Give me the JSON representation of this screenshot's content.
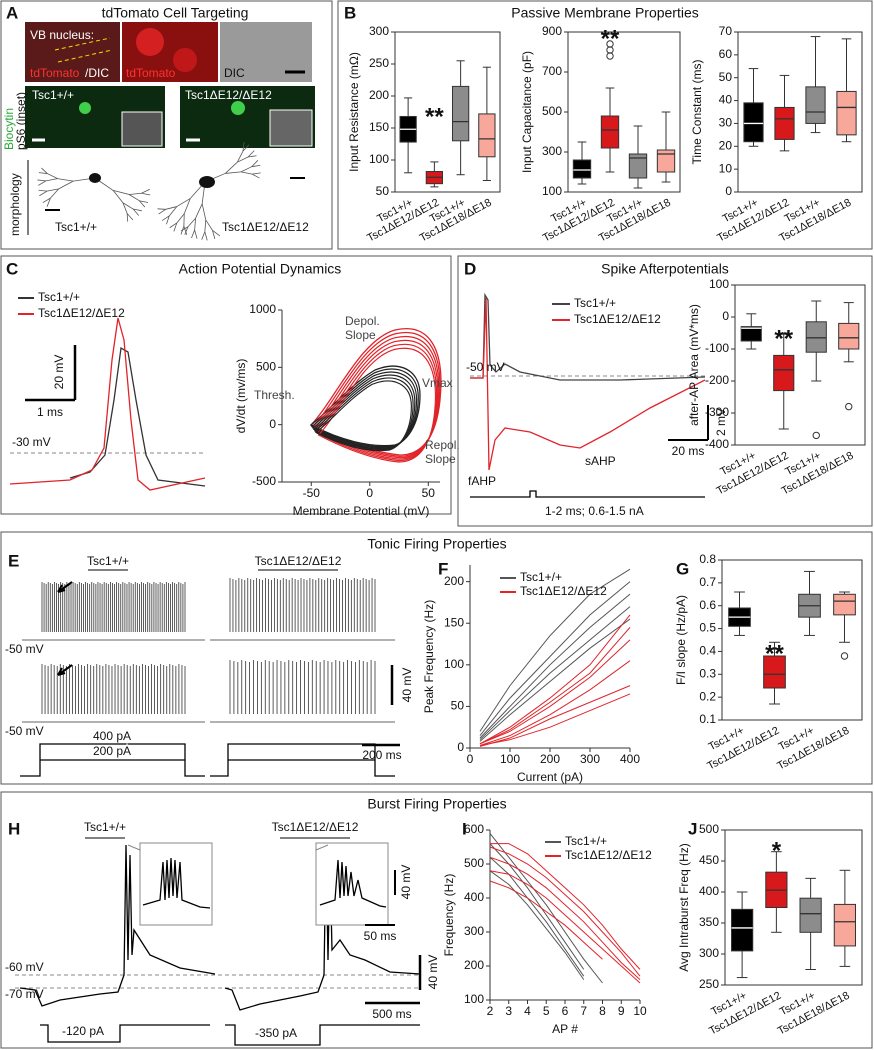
{
  "labels": {
    "a": "A",
    "a_title": "tdTomato Cell Targeting",
    "vb": "VB nucleus:",
    "tdt1": "tdTomato",
    "dic1": "/DIC",
    "tdt2": "tdTomato",
    "dic2": "DIC",
    "biocytin": "Biocytin",
    "ps6": "pS6 (inset)",
    "a_wt": "Tsc1+/+",
    "a_mut": "Tsc1ΔE12/ΔE12",
    "morph": "morphology",
    "a_wt2": "Tsc1+/+",
    "a_mut2": "Tsc1ΔE12/ΔE12",
    "b": "B",
    "b_title": "Passive Membrane Properties",
    "c": "C",
    "c_title": "Action Potential Dynamics",
    "c_wt": "Tsc1+/+",
    "c_mut": "Tsc1ΔE12/ΔE12",
    "c_mv": "20 mV",
    "c_ms": "1 ms",
    "c_base": "-30 mV",
    "d": "D",
    "d_title": "Spike Afterpotentials",
    "d_wt": "Tsc1+/+",
    "d_mut": "Tsc1ΔE12/ΔE12",
    "d_base": "-50 mV",
    "d_mv": "2 mV",
    "d_ms": "20 ms",
    "d_sahp": "sAHP",
    "d_fahp": "fAHP",
    "d_stim": "1-2 ms; 0.6-1.5 nA",
    "e_title": "Tonic Firing Properties",
    "e": "E",
    "e_wt": "Tsc1+/+",
    "e_mut": "Tsc1ΔE12/ΔE12",
    "e_base1": "-50 mV",
    "e_base2": "-50 mV",
    "e_mv": "40 mV",
    "e_ms": "200 ms",
    "e_400": "400 pA",
    "e_200": "200 pA",
    "f": "F",
    "g": "G",
    "h_title": "Burst Firing Properties",
    "h": "H",
    "h_wt": "Tsc1+/+",
    "h_mut": "Tsc1ΔE12/ΔE12",
    "h_in_mv": "40 mV",
    "h_in_ms": "50 ms",
    "h_60": "-60 mV",
    "h_70": "-70 mV",
    "h_mv": "40 mV",
    "h_ms": "500 ms",
    "h_120": "-120 pA",
    "h_350": "-350 pA",
    "i": "I",
    "j": "J"
  },
  "chart_data": [
    {
      "type": "box",
      "ylabel": "Input Resistance (mΩ)",
      "ylim": [
        50,
        300
      ],
      "yticks": [
        50,
        100,
        150,
        200,
        250,
        300
      ],
      "annotation": "**",
      "categories": [
        "Tsc1+/+",
        "Tsc1ΔE12/ΔE12",
        "Tsc1+/+",
        "Tsc1ΔE18/ΔE18"
      ],
      "colors": [
        "#000000",
        "#d7191c",
        "#8c8c8c",
        "#f7a89a"
      ],
      "boxes": [
        {
          "min": 80,
          "q1": 128,
          "median": 148,
          "q3": 168,
          "max": 197
        },
        {
          "min": 58,
          "q1": 63,
          "median": 73,
          "q3": 82,
          "max": 97
        },
        {
          "min": 77,
          "q1": 130,
          "median": 160,
          "q3": 215,
          "max": 255
        },
        {
          "min": 68,
          "q1": 105,
          "median": 133,
          "q3": 172,
          "max": 245
        }
      ],
      "outliers": [
        [],
        [],
        [],
        []
      ]
    },
    {
      "type": "box",
      "ylabel": "Input Capacitance (pF)",
      "ylim": [
        100,
        900
      ],
      "yticks": [
        100,
        300,
        500,
        700,
        900
      ],
      "annotation": "**",
      "categories": [
        "Tsc1+/+",
        "Tsc1ΔE12/ΔE12",
        "Tsc1+/+",
        "Tsc1ΔE18/ΔE18"
      ],
      "colors": [
        "#000000",
        "#d7191c",
        "#8c8c8c",
        "#f7a89a"
      ],
      "boxes": [
        {
          "min": 140,
          "q1": 170,
          "median": 210,
          "q3": 260,
          "max": 350
        },
        {
          "min": 200,
          "q1": 320,
          "median": 410,
          "q3": 480,
          "max": 620
        },
        {
          "min": 120,
          "q1": 170,
          "median": 270,
          "q3": 290,
          "max": 430
        },
        {
          "min": 150,
          "q1": 200,
          "median": 290,
          "q3": 310,
          "max": 500
        }
      ],
      "outliers": [
        [],
        [
          780,
          810,
          840
        ],
        [],
        []
      ]
    },
    {
      "type": "box",
      "ylabel": "Time Constant (ms)",
      "ylim": [
        0,
        70
      ],
      "yticks": [
        0,
        10,
        20,
        30,
        40,
        50,
        60,
        70
      ],
      "categories": [
        "Tsc1+/+",
        "Tsc1ΔE12/ΔE12",
        "Tsc1+/+",
        "Tsc1ΔE18/ΔE18"
      ],
      "colors": [
        "#000000",
        "#d7191c",
        "#8c8c8c",
        "#f7a89a"
      ],
      "boxes": [
        {
          "min": 20,
          "q1": 22,
          "median": 30,
          "q3": 39,
          "max": 54
        },
        {
          "min": 18,
          "q1": 23,
          "median": 32,
          "q3": 37,
          "max": 51
        },
        {
          "min": 26,
          "q1": 30,
          "median": 35,
          "q3": 46,
          "max": 68
        },
        {
          "min": 22,
          "q1": 25,
          "median": 37,
          "q3": 44,
          "max": 67
        }
      ],
      "outliers": [
        [],
        [],
        [],
        []
      ]
    },
    {
      "type": "phase",
      "xlabel": "Membrane Potential (mV)",
      "ylabel": "dV/dt (mv/ms)",
      "xlim": [
        -75,
        60
      ],
      "xticks": [
        -50,
        0,
        50
      ],
      "ylim": [
        -500,
        1000
      ],
      "yticks": [
        -500,
        0,
        500,
        1000
      ],
      "annotations": [
        "Depol.",
        "Slope",
        "Thresh.",
        "Vmax",
        "Repol.",
        "Slope"
      ]
    },
    {
      "type": "box",
      "ylabel": "after-AP Area (mV*ms)",
      "ylim": [
        -400,
        100
      ],
      "yticks": [
        -400,
        -300,
        -200,
        -100,
        0,
        100
      ],
      "annotation": "**",
      "categories": [
        "Tsc1+/+",
        "Tsc1ΔE12/ΔE12",
        "Tsc1+/+",
        "Tsc1ΔE18/ΔE18"
      ],
      "colors": [
        "#000000",
        "#d7191c",
        "#8c8c8c",
        "#f7a89a"
      ],
      "boxes": [
        {
          "min": -100,
          "q1": -75,
          "median": -35,
          "q3": -30,
          "max": 10
        },
        {
          "min": -350,
          "q1": -230,
          "median": -165,
          "q3": -120,
          "max": -50
        },
        {
          "min": -200,
          "q1": -110,
          "median": -65,
          "q3": -15,
          "max": 50
        },
        {
          "min": -140,
          "q1": -100,
          "median": -65,
          "q3": -20,
          "max": 45
        }
      ],
      "outliers": [
        [],
        [],
        [
          -370
        ],
        [
          -280
        ]
      ]
    },
    {
      "type": "lines",
      "xlabel": "Current (pA)",
      "ylabel": "Peak Frequency (Hz)",
      "xlim": [
        0,
        400
      ],
      "xticks": [
        0,
        100,
        200,
        300,
        400
      ],
      "ylim": [
        0,
        220
      ],
      "yticks": [
        0,
        50,
        100,
        150,
        200
      ],
      "x": [
        25,
        100,
        200,
        300,
        400
      ],
      "series": [
        {
          "name": "Tsc1+/+",
          "color": "#555555",
          "lines": [
            [
              20,
              75,
              135,
              185,
              215
            ],
            [
              15,
              60,
              110,
              160,
              200
            ],
            [
              12,
              50,
              100,
              145,
              185
            ],
            [
              10,
              45,
              90,
              130,
              170
            ],
            [
              8,
              40,
              80,
              120,
              155
            ]
          ]
        },
        {
          "name": "Tsc1ΔE12/ΔE12",
          "color": "#e0242a",
          "lines": [
            [
              5,
              25,
              60,
              100,
              160
            ],
            [
              5,
              20,
              50,
              85,
              130
            ],
            [
              3,
              15,
              40,
              70,
              105
            ],
            [
              5,
              22,
              55,
              90,
              145
            ],
            [
              2,
              12,
              35,
              55,
              75
            ],
            [
              3,
              10,
              25,
              45,
              65
            ]
          ]
        }
      ]
    },
    {
      "type": "box",
      "ylabel": "F/I slope (Hz/pA)",
      "ylim": [
        0.1,
        0.8
      ],
      "yticks": [
        0.1,
        0.2,
        0.3,
        0.4,
        0.5,
        0.6,
        0.7,
        0.8
      ],
      "annotation": "**",
      "categories": [
        "Tsc1+/+",
        "Tsc1ΔE12/ΔE12",
        "Tsc1+/+",
        "Tsc1ΔE18/ΔE18"
      ],
      "colors": [
        "#000000",
        "#d7191c",
        "#8c8c8c",
        "#f7a89a"
      ],
      "boxes": [
        {
          "min": 0.47,
          "q1": 0.51,
          "median": 0.55,
          "q3": 0.59,
          "max": 0.66
        },
        {
          "min": 0.17,
          "q1": 0.24,
          "median": 0.3,
          "q3": 0.38,
          "max": 0.44
        },
        {
          "min": 0.47,
          "q1": 0.55,
          "median": 0.6,
          "q3": 0.65,
          "max": 0.75
        },
        {
          "min": 0.44,
          "q1": 0.56,
          "median": 0.62,
          "q3": 0.65,
          "max": 0.66
        }
      ],
      "outliers": [
        [],
        [],
        [],
        [
          0.38
        ]
      ]
    },
    {
      "type": "lines",
      "xlabel": "AP #",
      "ylabel": "Frequency (Hz)",
      "xlim": [
        2,
        10
      ],
      "xticks": [
        2,
        3,
        4,
        5,
        6,
        7,
        8,
        9,
        10
      ],
      "ylim": [
        100,
        600
      ],
      "yticks": [
        100,
        200,
        300,
        400,
        500,
        600
      ],
      "x": [
        2,
        3,
        4,
        5,
        6,
        7,
        8,
        9,
        10
      ],
      "series": [
        {
          "name": "Tsc1+/+",
          "color": "#555555",
          "lines": [
            [
              590,
              520,
              450,
              380,
              300,
              220,
              150,
              null,
              null
            ],
            [
              560,
              500,
              430,
              350,
              270,
              190,
              null,
              null,
              null
            ],
            [
              520,
              470,
              400,
              330,
              250,
              170,
              null,
              null,
              null
            ],
            [
              480,
              440,
              380,
              310,
              240,
              160,
              null,
              null,
              null
            ]
          ]
        },
        {
          "name": "Tsc1ΔE12/ΔE12",
          "color": "#e0242a",
          "lines": [
            [
              560,
              560,
              530,
              480,
              430,
              380,
              320,
              250,
              190
            ],
            [
              550,
              530,
              500,
              460,
              410,
              360,
              300,
              240,
              170
            ],
            [
              520,
              500,
              470,
              430,
              380,
              330,
              270,
              210,
              160
            ],
            [
              480,
              470,
              440,
              400,
              350,
              300,
              250,
              200,
              150
            ],
            [
              450,
              430,
              400,
              360,
              320,
              270,
              220,
              null,
              null
            ]
          ]
        }
      ]
    },
    {
      "type": "box",
      "ylabel": "Avg Intraburst Freq (Hz)",
      "ylim": [
        250,
        500
      ],
      "yticks": [
        250,
        300,
        350,
        400,
        450,
        500
      ],
      "annotation": "*",
      "categories": [
        "Tsc1+/+",
        "Tsc1ΔE12/ΔE12",
        "Tsc1+/+",
        "Tsc1ΔE18/ΔE18"
      ],
      "colors": [
        "#000000",
        "#d7191c",
        "#8c8c8c",
        "#f7a89a"
      ],
      "boxes": [
        {
          "min": 262,
          "q1": 305,
          "median": 342,
          "q3": 372,
          "max": 400
        },
        {
          "min": 335,
          "q1": 375,
          "median": 403,
          "q3": 432,
          "max": 465
        },
        {
          "min": 275,
          "q1": 335,
          "median": 365,
          "q3": 390,
          "max": 422
        },
        {
          "min": 280,
          "q1": 313,
          "median": 352,
          "q3": 380,
          "max": 435
        }
      ],
      "outliers": [
        [],
        [],
        [],
        []
      ]
    }
  ]
}
